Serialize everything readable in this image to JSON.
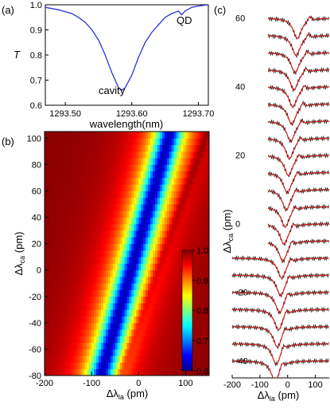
{
  "chart_data": [
    {
      "id": "a",
      "type": "line",
      "panel_label": "(a)",
      "xlabel": "wavelength(nm)",
      "ylabel": "T",
      "xlim": [
        1293.47,
        1293.715
      ],
      "ylim": [
        0.6,
        1.0
      ],
      "xticks": [
        1293.5,
        1293.6,
        1293.7
      ],
      "xtick_labels": [
        "1293.50",
        "1293.60",
        "1293.70"
      ],
      "yticks": [
        0.6,
        0.7,
        0.8,
        0.9,
        1.0
      ],
      "ytick_labels": [
        "0.6",
        "0.7",
        "0.8",
        "0.9",
        "1.0"
      ],
      "annotations": [
        "cavity",
        "QD"
      ],
      "series": [
        {
          "color": "#2a35d8",
          "x": [
            1293.47,
            1293.49,
            1293.51,
            1293.52,
            1293.53,
            1293.54,
            1293.55,
            1293.56,
            1293.57,
            1293.58,
            1293.585,
            1293.59,
            1293.6,
            1293.61,
            1293.62,
            1293.63,
            1293.64,
            1293.65,
            1293.66,
            1293.67,
            1293.675,
            1293.68,
            1293.69,
            1293.7,
            1293.715
          ],
          "y": [
            0.99,
            0.98,
            0.965,
            0.95,
            0.93,
            0.9,
            0.86,
            0.8,
            0.73,
            0.67,
            0.66,
            0.67,
            0.72,
            0.79,
            0.85,
            0.89,
            0.92,
            0.95,
            0.965,
            0.975,
            0.96,
            0.975,
            0.99,
            0.995,
            1.0
          ]
        }
      ]
    },
    {
      "id": "b",
      "type": "heatmap",
      "panel_label": "(b)",
      "xlabel": "Δλ",
      "xlabel_sub": "la",
      "xlabel_unit": " (pm)",
      "ylabel": "Δλ",
      "ylabel_sub": "ca",
      "ylabel_unit": " (pm)",
      "xlim": [
        -200,
        150
      ],
      "ylim": [
        -80,
        105
      ],
      "xticks": [
        -200,
        -100,
        0,
        100
      ],
      "xtick_labels": [
        "-200",
        "-100",
        "0",
        "100"
      ],
      "yticks": [
        -80,
        -60,
        -40,
        -20,
        0,
        20,
        40,
        60,
        80,
        100
      ],
      "ytick_labels": [
        "-80",
        "-60",
        "-40",
        "-20",
        "0",
        "20",
        "40",
        "60",
        "80",
        "100"
      ],
      "colorbar": {
        "range": [
          0.6,
          1.0
        ],
        "ticks": [
          0.6,
          0.7,
          0.8,
          0.9,
          1.0
        ],
        "tick_labels": [
          "0.6",
          "0.7",
          "0.8",
          "0.9",
          "1.0"
        ]
      },
      "model": {
        "dip_center_at_min_detuning": -80,
        "dip_slope": 0.8,
        "dip_depth": 0.38,
        "dip_width_pm": 28,
        "qd_line_offset_pm": 40
      }
    },
    {
      "id": "c",
      "type": "line",
      "panel_label": "(c)",
      "xlabel": "Δλ",
      "xlabel_sub": "la",
      "xlabel_unit": " (pm)",
      "ylabel": "Δλ",
      "ylabel_sub": "ca",
      "ylabel_unit": " (pm)",
      "xlim": [
        -200,
        150
      ],
      "ylim": [
        -45,
        62
      ],
      "xticks": [
        -200,
        -100,
        0,
        100
      ],
      "xtick_labels": [
        "-200",
        "-100",
        "0",
        "100"
      ],
      "yticks": [
        -40,
        -20,
        0,
        20,
        40,
        60
      ],
      "ytick_labels": [
        "-40",
        "-20",
        "0",
        "20",
        "40",
        "60"
      ],
      "trace_offsets": [
        60,
        55,
        50,
        45,
        40,
        35,
        30,
        25,
        20,
        15,
        10,
        5,
        0,
        -5,
        -10,
        -15,
        -20,
        -25,
        -30,
        -35,
        -40
      ],
      "trace_start_x": [
        -70,
        -70,
        -70,
        -70,
        -70,
        -70,
        -70,
        -70,
        -70,
        -70,
        -70,
        -70,
        -70,
        -70,
        -200,
        -200,
        -200,
        -200,
        -200,
        -200,
        -200
      ],
      "colors": {
        "data": "#111111",
        "fit": "#e0201b"
      }
    }
  ]
}
